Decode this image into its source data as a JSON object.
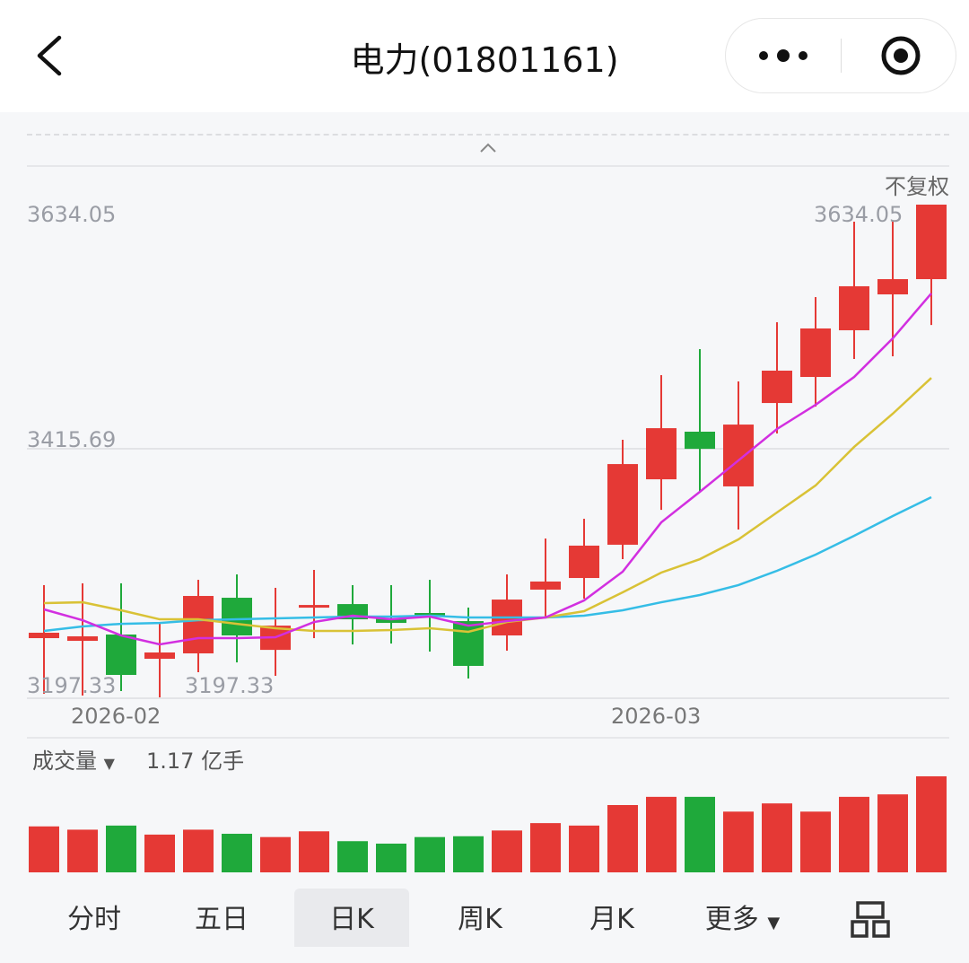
{
  "header": {
    "title": "电力(01801161)",
    "back_icon": "chevron-left-icon",
    "more_icon": "more-dots-icon",
    "close_icon": "target-circle-icon"
  },
  "chart": {
    "adjust_label": "不复权",
    "y_labels": {
      "top": "3634.05",
      "mid": "3415.69",
      "bottom": "3197.33"
    },
    "max_marker": "3634.05",
    "min_marker": "3197.33",
    "date_labels": [
      "2026-02",
      "2026-03"
    ]
  },
  "volume": {
    "label": "成交量",
    "value": "1.17 亿手"
  },
  "tabs": [
    {
      "label": "分时"
    },
    {
      "label": "五日"
    },
    {
      "label": "日K",
      "selected": true
    },
    {
      "label": "周K"
    },
    {
      "label": "月K"
    },
    {
      "label": "更多"
    }
  ],
  "grid_icon": "grid-layout-icon",
  "colors": {
    "up": "#e53935",
    "down": "#1fa93b",
    "ma5": "#d22fe0",
    "ma10": "#d9c236",
    "ma20": "#35bde6"
  },
  "chart_data": {
    "type": "candlestick",
    "ylim": [
      3197.33,
      3634.05
    ],
    "candles": [
      {
        "o": 3249.8,
        "c": 3254.6,
        "h": 3296.8,
        "l": 3200.5
      },
      {
        "o": 3247.4,
        "c": 3251.4,
        "h": 3298.4,
        "l": 3198.9
      },
      {
        "o": 3253.0,
        "c": 3217.2,
        "h": 3298.4,
        "l": 3202.9
      },
      {
        "o": 3231.5,
        "c": 3237.1,
        "h": 3264.1,
        "l": 3197.33
      },
      {
        "o": 3236.3,
        "c": 3287.2,
        "h": 3301.5,
        "l": 3219.6
      },
      {
        "o": 3285.6,
        "c": 3252.2,
        "h": 3306.3,
        "l": 3228.3
      },
      {
        "o": 3239.4,
        "c": 3260.9,
        "h": 3294.4,
        "l": 3216.4
      },
      {
        "o": 3276.9,
        "c": 3279.2,
        "h": 3310.3,
        "l": 3249.8
      },
      {
        "o": 3280.0,
        "c": 3266.5,
        "h": 3296.8,
        "l": 3244.2
      },
      {
        "o": 3267.3,
        "c": 3263.3,
        "h": 3296.8,
        "l": 3245.0
      },
      {
        "o": 3272.1,
        "c": 3269.7,
        "h": 3301.5,
        "l": 3237.9
      },
      {
        "o": 3264.9,
        "c": 3225.2,
        "h": 3276.9,
        "l": 3214.0
      },
      {
        "o": 3252.2,
        "c": 3284.0,
        "h": 3306.3,
        "l": 3238.7
      },
      {
        "o": 3292.8,
        "c": 3300.0,
        "h": 3338.1,
        "l": 3268.9
      },
      {
        "o": 3303.1,
        "c": 3331.8,
        "h": 3355.6,
        "l": 3284.8
      },
      {
        "o": 3332.6,
        "c": 3404.1,
        "h": 3425.6,
        "l": 3319.8
      },
      {
        "o": 3390.6,
        "c": 3435.9,
        "h": 3482.9,
        "l": 3363.5
      },
      {
        "o": 3432.8,
        "c": 3417.6,
        "h": 3506.0,
        "l": 3379.5
      },
      {
        "o": 3384.3,
        "c": 3439.1,
        "h": 3477.3,
        "l": 3346.1
      },
      {
        "o": 3458.2,
        "c": 3486.9,
        "h": 3529.8,
        "l": 3431.2
      },
      {
        "o": 3481.3,
        "c": 3524.3,
        "h": 3552.1,
        "l": 3455.0
      },
      {
        "o": 3522.7,
        "c": 3561.7,
        "h": 3618.9,
        "l": 3497.2
      },
      {
        "o": 3554.5,
        "c": 3568.0,
        "h": 3618.9,
        "l": 3499.6
      },
      {
        "o": 3568.0,
        "c": 3634.05,
        "h": 3634.05,
        "l": 3527.4
      }
    ],
    "ma5": [
      3275.3,
      3265.7,
      3252.2,
      3244.3,
      3249.8,
      3249.8,
      3250.6,
      3264.1,
      3269.7,
      3266.5,
      3268.9,
      3260.9,
      3264.9,
      3268.1,
      3283.2,
      3308.7,
      3352.4,
      3379.5,
      3407.3,
      3435.2,
      3456.6,
      3481.3,
      3515.5,
      3555.3
    ],
    "ma10": [
      3280.9,
      3281.6,
      3274.5,
      3266.5,
      3266.5,
      3262.5,
      3258.6,
      3256.2,
      3256.2,
      3257.0,
      3258.6,
      3255.4,
      3264.1,
      3268.1,
      3273.7,
      3290.4,
      3307.9,
      3319.8,
      3337.3,
      3361.2,
      3385.1,
      3419.3,
      3448.7,
      3480.5
    ],
    "ma20": [
      3256.2,
      3260.2,
      3262.5,
      3263.3,
      3265.7,
      3266.5,
      3267.3,
      3268.1,
      3268.9,
      3268.9,
      3269.7,
      3268.1,
      3268.1,
      3268.1,
      3269.7,
      3274.5,
      3281.6,
      3288.0,
      3296.8,
      3309.5,
      3323.8,
      3340.5,
      3358.0,
      3374.7
    ],
    "volume_unit": "亿手",
    "volume": [
      0.56,
      0.52,
      0.57,
      0.46,
      0.52,
      0.47,
      0.43,
      0.5,
      0.38,
      0.35,
      0.43,
      0.44,
      0.51,
      0.6,
      0.57,
      0.82,
      0.92,
      0.92,
      0.74,
      0.84,
      0.74,
      0.92,
      0.95,
      1.17
    ]
  }
}
